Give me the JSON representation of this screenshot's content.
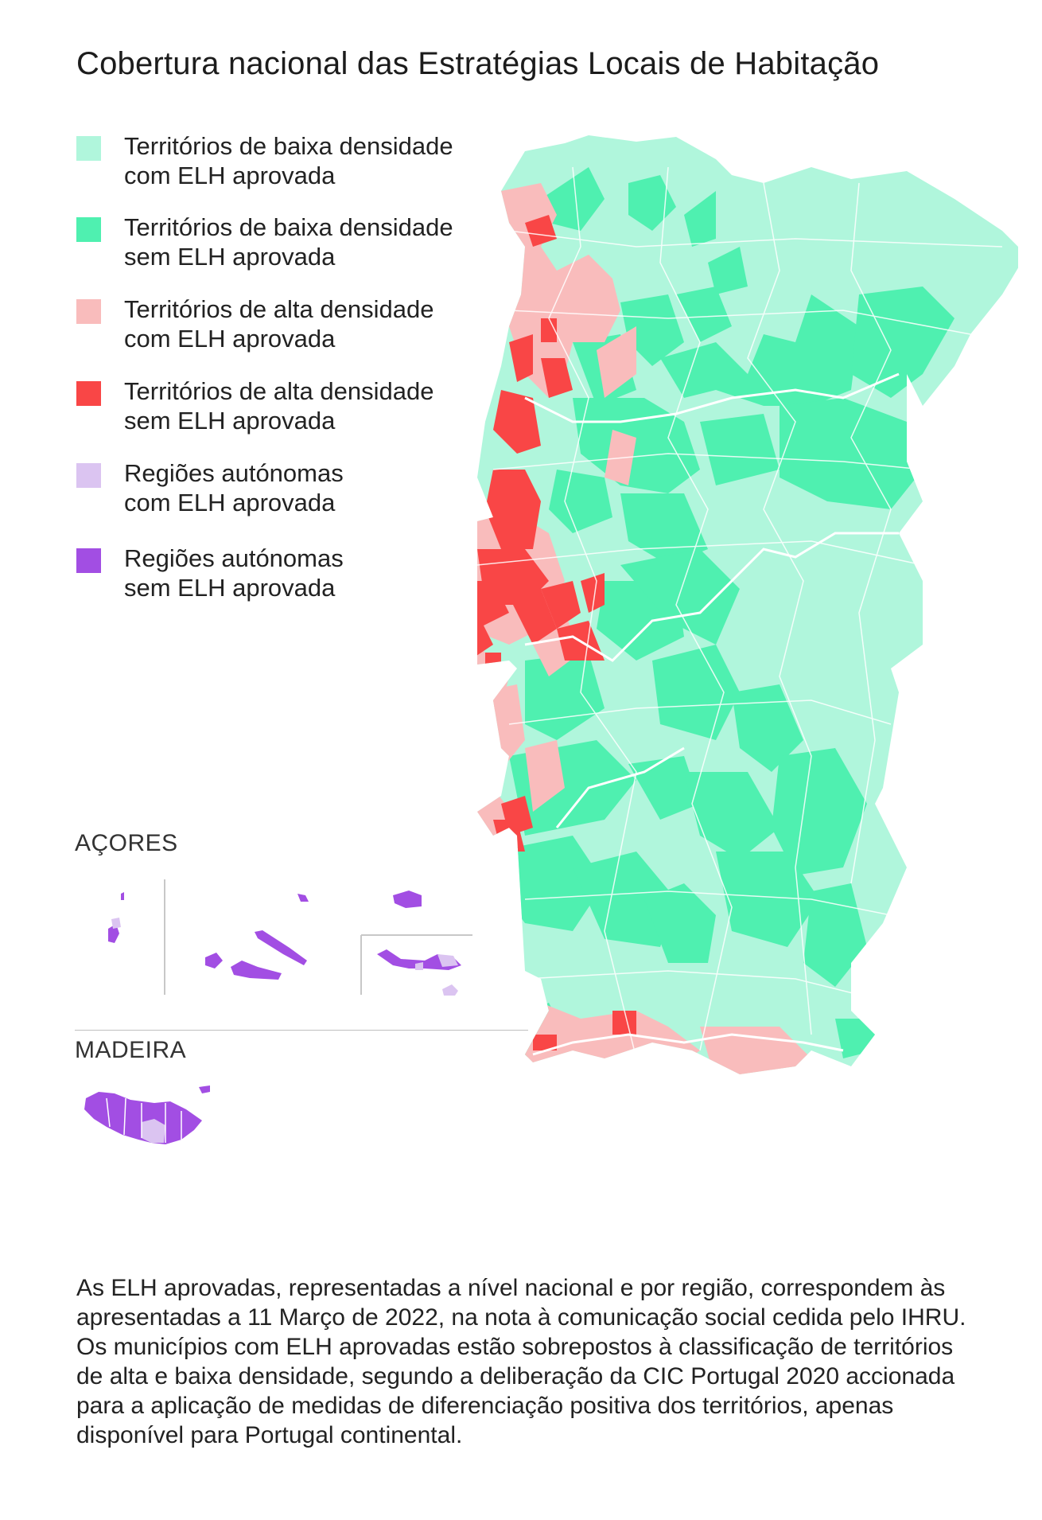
{
  "title": "Cobertura nacional das Estratégias Locais de Habitação",
  "colors": {
    "low_density_approved": "#b0f6dc",
    "low_density_not_approved": "#4ff0b0",
    "high_density_approved": "#f9bcbc",
    "high_density_not_approved": "#f94646",
    "autonomous_approved": "#dbc4f1",
    "autonomous_not_approved": "#a24ee3"
  },
  "legend": [
    {
      "line1": "Territórios de baixa densidade",
      "line2": "com ELH aprovada"
    },
    {
      "line1": "Territórios de baixa densidade",
      "line2": "sem ELH aprovada"
    },
    {
      "line1": "Territórios de alta densidade",
      "line2": "com ELH aprovada"
    },
    {
      "line1": "Territórios de alta densidade",
      "line2": "sem ELH aprovada"
    },
    {
      "line1": "Regiões autónomas",
      "line2": "com ELH aprovada"
    },
    {
      "line1": "Regiões autónomas",
      "line2": "sem ELH aprovada"
    }
  ],
  "insets": {
    "azores_label": "AÇORES",
    "madeira_label": "MADEIRA"
  },
  "note": "As ELH aprovadas, representadas a nível nacional e por região, correspondem às apresentadas a 11 Março de 2022, na nota à comunicação social cedida pelo IHRU. Os municípios com ELH aprovadas estão sobrepostos à classificação de territórios de alta e baixa densidade, segundo a deliberação da CIC Portugal 2020 accionada para a aplicação de medidas de diferenciação positiva dos territórios, apenas disponível para Portugal continental."
}
